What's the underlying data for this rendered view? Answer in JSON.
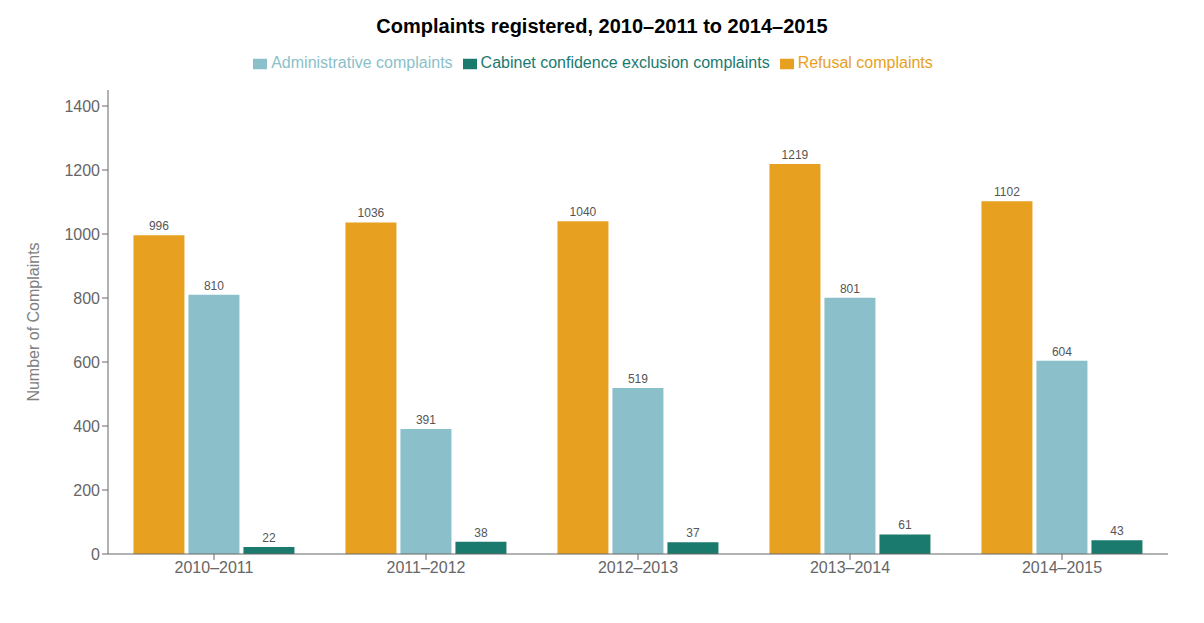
{
  "chart_data": {
    "type": "bar",
    "title": "Complaints registered, 2010–2011 to 2014–2015",
    "ylabel": "Number of Complaints",
    "categories": [
      "2010–2011",
      "2011–2012",
      "2012–2013",
      "2013–2014",
      "2014–2015"
    ],
    "series": [
      {
        "name": "Refusal complaints",
        "color": "#E8A020",
        "values": [
          996,
          1036,
          1040,
          1219,
          1102
        ]
      },
      {
        "name": "Administrative complaints",
        "color": "#8BBFC9",
        "values": [
          810,
          391,
          519,
          801,
          604
        ]
      },
      {
        "name": "Cabinet confidence exclusion complaints",
        "color": "#1A7A6E",
        "values": [
          22,
          38,
          37,
          61,
          43
        ]
      }
    ],
    "ylim": [
      0,
      1450
    ],
    "yticks": [
      0,
      200,
      400,
      600,
      800,
      1000,
      1200,
      1400
    ],
    "grid": false,
    "legend": "top",
    "data_labels": true
  }
}
